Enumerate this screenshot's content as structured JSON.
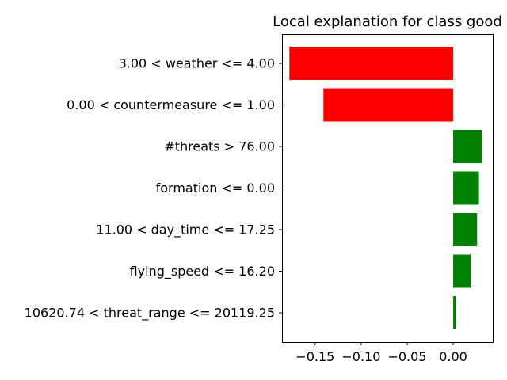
{
  "chart_data": {
    "type": "bar",
    "orientation": "horizontal",
    "title": "Local explanation for class good",
    "xlabel": "",
    "ylabel": "",
    "categories": [
      "3.00 < weather <= 4.00",
      "0.00 < countermeasure <= 1.00",
      "#threats > 76.00",
      "formation <= 0.00",
      "11.00 < day_time <= 17.25",
      "flying_speed <= 16.20",
      "10620.74 < threat_range <= 20119.25"
    ],
    "values": [
      -0.178,
      -0.141,
      0.031,
      0.028,
      0.026,
      0.019,
      0.003
    ],
    "xlim": [
      -0.186,
      0.043
    ],
    "xticks": [
      -0.15,
      -0.1,
      -0.05,
      0.0
    ],
    "xtick_labels": [
      "−0.15",
      "−0.10",
      "−0.05",
      "0.00"
    ],
    "grid": false,
    "legend": "none",
    "colors": {
      "negative": "#ff0000",
      "positive": "#008000",
      "axis": "#000000",
      "background": "#ffffff"
    }
  }
}
